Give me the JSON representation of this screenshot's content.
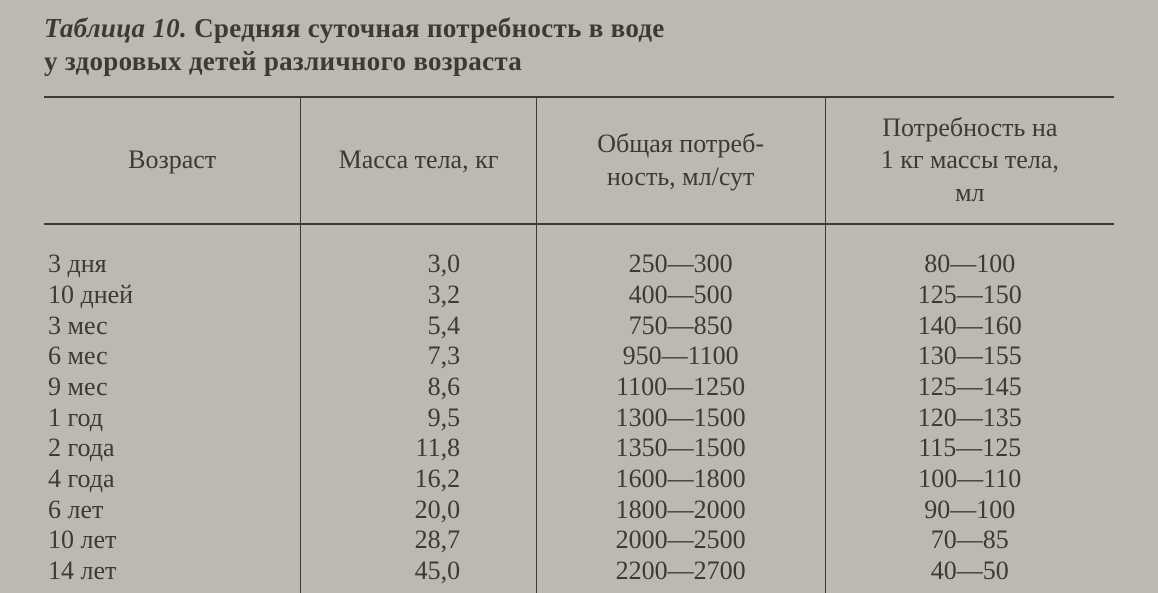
{
  "caption_label": "Таблица 10.",
  "caption_title_line1": "Средняя суточная потребность в воде",
  "caption_title_line2": "у здоровых детей различного возраста",
  "table": {
    "type": "table",
    "background_color": "#bcbab0",
    "text_color": "#3b3a35",
    "rule_color": "#3b3a35",
    "font_family": "serif",
    "header_fontsize_pt": 20,
    "body_fontsize_pt": 20,
    "column_alignments": [
      "left",
      "right",
      "center",
      "center"
    ],
    "column_widths_pct": [
      24,
      22,
      27,
      27
    ],
    "columns": [
      "Возраст",
      "Масса тела, кг",
      "Общая потребность, мл/сут",
      "Потребность на 1 кг массы тела, мл"
    ],
    "header_wrapped": {
      "c2_l1": "Общая потреб-",
      "c2_l2": "ность, мл/сут",
      "c3_l1": "Потребность на",
      "c3_l2": "1 кг массы тела,",
      "c3_l3": "мл"
    },
    "rows": [
      {
        "age": "3 дня",
        "mass": "3,0",
        "total": "250—300",
        "per_kg": "80—100"
      },
      {
        "age": "10 дней",
        "mass": "3,2",
        "total": "400—500",
        "per_kg": "125—150"
      },
      {
        "age": "3 мес",
        "mass": "5,4",
        "total": "750—850",
        "per_kg": "140—160"
      },
      {
        "age": "6 мес",
        "mass": "7,3",
        "total": "950—1100",
        "per_kg": "130—155"
      },
      {
        "age": "9 мес",
        "mass": "8,6",
        "total": "1100—1250",
        "per_kg": "125—145"
      },
      {
        "age": "1 год",
        "mass": "9,5",
        "total": "1300—1500",
        "per_kg": "120—135"
      },
      {
        "age": "2 года",
        "mass": "11,8",
        "total": "1350—1500",
        "per_kg": "115—125"
      },
      {
        "age": "4 года",
        "mass": "16,2",
        "total": "1600—1800",
        "per_kg": "100—110"
      },
      {
        "age": "6 лет",
        "mass": "20,0",
        "total": "1800—2000",
        "per_kg": "90—100"
      },
      {
        "age": "10 лет",
        "mass": "28,7",
        "total": "2000—2500",
        "per_kg": "70—85"
      },
      {
        "age": "14 лет",
        "mass": "45,0",
        "total": "2200—2700",
        "per_kg": "40—50"
      }
    ]
  }
}
